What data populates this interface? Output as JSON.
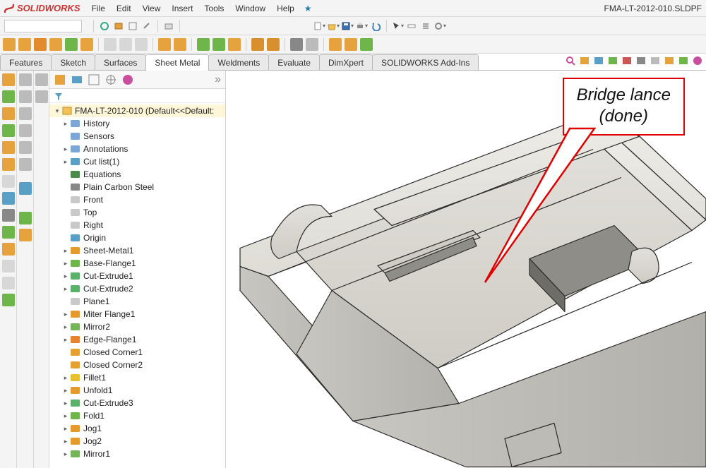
{
  "app": {
    "brand": "SOLIDWORKS",
    "doc_title": "FMA-LT-2012-010.SLDPF",
    "menus": [
      "File",
      "Edit",
      "View",
      "Insert",
      "Tools",
      "Window",
      "Help"
    ]
  },
  "tabs": {
    "items": [
      "Features",
      "Sketch",
      "Surfaces",
      "Sheet Metal",
      "Weldments",
      "Evaluate",
      "DimXpert",
      "SOLIDWORKS Add-Ins"
    ],
    "active_index": 3
  },
  "tree": {
    "root": "FMA-LT-2012-010  (Default<<Default:",
    "nodes": [
      {
        "icon": "history",
        "label": "History",
        "tw": "▸"
      },
      {
        "icon": "sensors",
        "label": "Sensors",
        "tw": ""
      },
      {
        "icon": "annot",
        "label": "Annotations",
        "tw": "▸"
      },
      {
        "icon": "cutlist",
        "label": "Cut list(1)",
        "tw": "▸"
      },
      {
        "icon": "eq",
        "label": "Equations",
        "tw": ""
      },
      {
        "icon": "material",
        "label": "Plain Carbon Steel",
        "tw": ""
      },
      {
        "icon": "plane",
        "label": "Front",
        "tw": ""
      },
      {
        "icon": "plane",
        "label": "Top",
        "tw": ""
      },
      {
        "icon": "plane",
        "label": "Right",
        "tw": ""
      },
      {
        "icon": "origin",
        "label": "Origin",
        "tw": ""
      },
      {
        "icon": "sheetmetal",
        "label": "Sheet-Metal1",
        "tw": "▸"
      },
      {
        "icon": "baseflange",
        "label": "Base-Flange1",
        "tw": "▸"
      },
      {
        "icon": "cutext",
        "label": "Cut-Extrude1",
        "tw": "▸"
      },
      {
        "icon": "cutext",
        "label": "Cut-Extrude2",
        "tw": "▸"
      },
      {
        "icon": "plane",
        "label": "Plane1",
        "tw": ""
      },
      {
        "icon": "miter",
        "label": "Miter Flange1",
        "tw": "▸"
      },
      {
        "icon": "mirror",
        "label": "Mirror2",
        "tw": "▸"
      },
      {
        "icon": "edgeflange",
        "label": "Edge-Flange1",
        "tw": "▸"
      },
      {
        "icon": "corner",
        "label": "Closed Corner1",
        "tw": ""
      },
      {
        "icon": "corner",
        "label": "Closed Corner2",
        "tw": ""
      },
      {
        "icon": "fillet",
        "label": "Fillet1",
        "tw": "▸"
      },
      {
        "icon": "unfold",
        "label": "Unfold1",
        "tw": "▸"
      },
      {
        "icon": "cutext",
        "label": "Cut-Extrude3",
        "tw": "▸"
      },
      {
        "icon": "fold",
        "label": "Fold1",
        "tw": "▸"
      },
      {
        "icon": "jog",
        "label": "Jog1",
        "tw": "▸"
      },
      {
        "icon": "jog",
        "label": "Jog2",
        "tw": "▸"
      },
      {
        "icon": "mirror",
        "label": "Mirror1",
        "tw": "▸"
      }
    ]
  },
  "callout": {
    "line1": "Bridge lance",
    "line2": "(done)"
  },
  "colors": {
    "brand": "#cc3333",
    "callout": "#e00000",
    "part_light": "#e8e7e3",
    "part_mid": "#d2d0cb",
    "part_dark": "#b8b6b0",
    "edge": "#2b2b2b"
  },
  "icons": {
    "history": "#7aa7d6",
    "sensors": "#7aa7d6",
    "annot": "#7aa7d6",
    "cutlist": "#5aa0c6",
    "eq": "#4a8c4a",
    "material": "#888888",
    "plane": "#c9c9c9",
    "origin": "#5aa0c6",
    "sheetmetal": "#e59a2e",
    "baseflange": "#6fb64a",
    "cutext": "#5bb06a",
    "miter": "#e59a2e",
    "mirror": "#74b55a",
    "edgeflange": "#e5832e",
    "corner": "#e5a030",
    "fillet": "#e8c030",
    "unfold": "#e59a2e",
    "fold": "#6fb64a",
    "jog": "#e59a2e"
  }
}
